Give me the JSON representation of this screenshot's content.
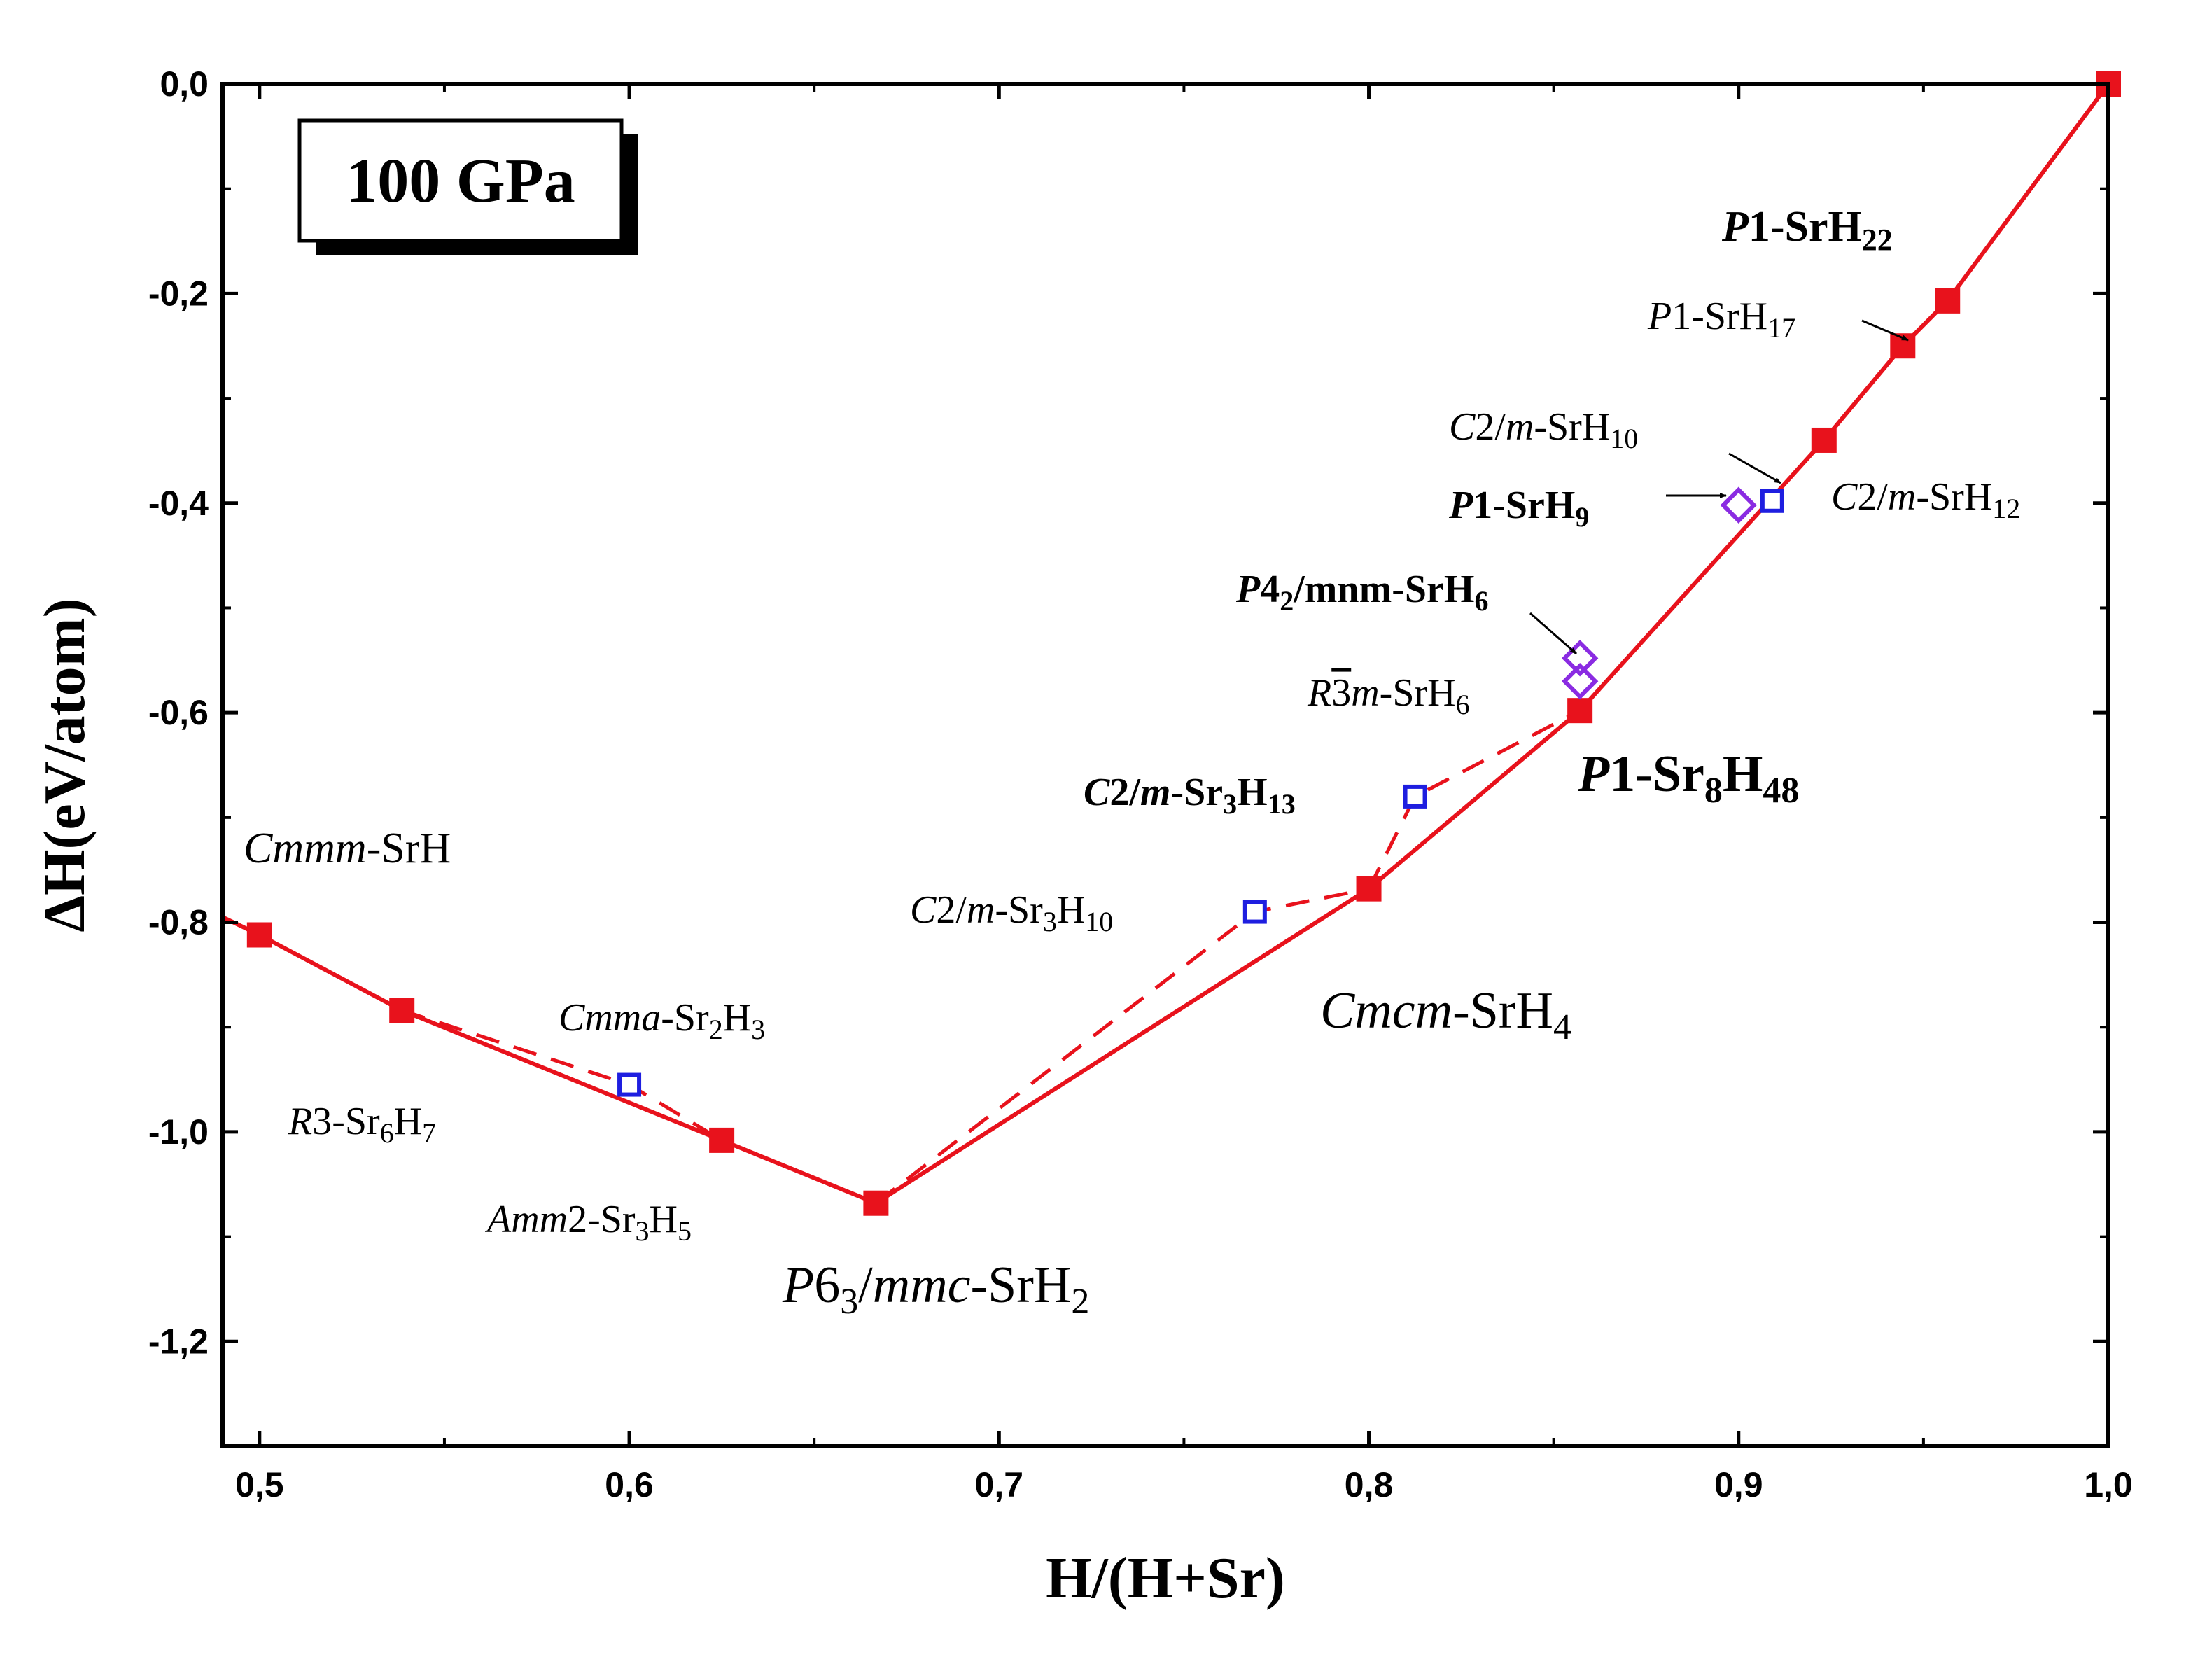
{
  "chart_data": {
    "type": "scatter",
    "title": "",
    "xlabel": "H/(H+Sr)",
    "ylabel": "ΔH(eV/atom)",
    "xlim": [
      0.49,
      1.0
    ],
    "ylim": [
      -1.3,
      0.0
    ],
    "x_ticks": [
      "0,5",
      "0,6",
      "0,7",
      "0,8",
      "0,9",
      "1,0"
    ],
    "x_tick_values": [
      0.5,
      0.6,
      0.7,
      0.8,
      0.9,
      1.0
    ],
    "y_ticks": [
      "0,0",
      "-0,2",
      "-0,4",
      "-0,6",
      "-0,8",
      "-1,0",
      "-1,2"
    ],
    "y_tick_values": [
      0.0,
      -0.2,
      -0.4,
      -0.6,
      -0.8,
      -1.0,
      -1.2
    ],
    "pressure_label": "100 GPa",
    "colors": {
      "hull": "#e8121c",
      "metastable": "#1e1ee0",
      "diamond": "#8a2be2"
    },
    "series": [
      {
        "style": "solid-line-filled-squares",
        "points": [
          {
            "x": 0.49,
            "y": -0.795,
            "marker": false
          },
          {
            "x": 0.5,
            "y": -0.812
          },
          {
            "x": 0.5385,
            "y": -0.884
          },
          {
            "x": 0.625,
            "y": -1.008
          },
          {
            "x": 0.6667,
            "y": -1.068
          },
          {
            "x": 0.8,
            "y": -0.768
          },
          {
            "x": 0.8571,
            "y": -0.598
          },
          {
            "x": 0.9231,
            "y": -0.34
          },
          {
            "x": 0.9444,
            "y": -0.25
          },
          {
            "x": 0.9565,
            "y": -0.207
          },
          {
            "x": 1.0,
            "y": 0.0
          }
        ]
      },
      {
        "style": "metastable-open-squares",
        "points": [
          {
            "x": 0.6,
            "y": -0.955
          },
          {
            "x": 0.7692,
            "y": -0.79
          },
          {
            "x": 0.8125,
            "y": -0.68
          },
          {
            "x": 0.9091,
            "y": -0.398
          }
        ]
      },
      {
        "style": "open-diamonds",
        "points": [
          {
            "x": 0.8571,
            "y": -0.548
          },
          {
            "x": 0.8571,
            "y": -0.57
          },
          {
            "x": 0.9,
            "y": -0.402
          }
        ]
      }
    ],
    "dashed_segments": [
      [
        {
          "x": 0.5385,
          "y": -0.884
        },
        {
          "x": 0.6,
          "y": -0.955
        },
        {
          "x": 0.625,
          "y": -1.008
        }
      ],
      [
        {
          "x": 0.6667,
          "y": -1.068
        },
        {
          "x": 0.7692,
          "y": -0.79
        },
        {
          "x": 0.8,
          "y": -0.768
        }
      ],
      [
        {
          "x": 0.8,
          "y": -0.768
        },
        {
          "x": 0.8125,
          "y": -0.68
        },
        {
          "x": 0.8571,
          "y": -0.598
        }
      ]
    ],
    "annotations": [
      {
        "parts": [
          [
            "Cmmm",
            "i"
          ],
          [
            "-SrH",
            ""
          ]
        ],
        "style": "med"
      },
      {
        "parts": [
          [
            "R",
            "i"
          ],
          [
            "3-Sr",
            ""
          ],
          [
            "6",
            "sub"
          ],
          [
            "H",
            ""
          ],
          [
            "7",
            "sub"
          ]
        ],
        "style": "small"
      },
      {
        "parts": [
          [
            "Cmma",
            "i"
          ],
          [
            "-Sr",
            ""
          ],
          [
            "2",
            "sub"
          ],
          [
            "H",
            ""
          ],
          [
            "3",
            "sub"
          ]
        ],
        "style": "small"
      },
      {
        "parts": [
          [
            "Amm",
            "i"
          ],
          [
            "2-Sr",
            ""
          ],
          [
            "3",
            "sub"
          ],
          [
            "H",
            ""
          ],
          [
            "5",
            "sub"
          ]
        ],
        "style": "small"
      },
      {
        "parts": [
          [
            "P",
            "i"
          ],
          [
            "6",
            ""
          ],
          [
            "3",
            "sub"
          ],
          [
            "/",
            ""
          ],
          [
            "mmc",
            "i"
          ],
          [
            "-SrH",
            ""
          ],
          [
            "2",
            "sub"
          ]
        ],
        "style": "large"
      },
      {
        "parts": [
          [
            "C",
            "i"
          ],
          [
            "2/",
            ""
          ],
          [
            "m",
            "i"
          ],
          [
            "-Sr",
            ""
          ],
          [
            "3",
            "sub"
          ],
          [
            "H",
            ""
          ],
          [
            "10",
            "sub"
          ]
        ],
        "style": "small"
      },
      {
        "parts": [
          [
            "Cmcm",
            "i"
          ],
          [
            "-SrH",
            ""
          ],
          [
            "4",
            "sub"
          ]
        ],
        "style": "large"
      },
      {
        "parts": [
          [
            "C",
            "bi"
          ],
          [
            "2/",
            ""
          ],
          [
            "m",
            "bi"
          ],
          [
            "-Sr",
            ""
          ],
          [
            "3",
            "sub"
          ],
          [
            "H",
            ""
          ],
          [
            "13",
            "sub"
          ]
        ],
        "style": "small-bold"
      },
      {
        "parts": [
          [
            "R",
            "i"
          ],
          [
            "3",
            "bar"
          ],
          [
            "m",
            "i"
          ],
          [
            "-SrH",
            ""
          ],
          [
            "6",
            "sub"
          ]
        ],
        "style": "small"
      },
      {
        "parts": [
          [
            "P",
            "bi"
          ],
          [
            "4",
            ""
          ],
          [
            "2",
            "sub"
          ],
          [
            "/mnm-SrH",
            ""
          ],
          [
            "6",
            "sub"
          ]
        ],
        "style": "small-bold"
      },
      {
        "parts": [
          [
            "P",
            "bi"
          ],
          [
            "1-Sr",
            ""
          ],
          [
            "8",
            "sub"
          ],
          [
            "H",
            ""
          ],
          [
            "48",
            "sub"
          ]
        ],
        "style": "large-bold"
      },
      {
        "parts": [
          [
            "P",
            "bi"
          ],
          [
            "1-SrH",
            ""
          ],
          [
            "9",
            "sub"
          ]
        ],
        "style": "small-bold"
      },
      {
        "parts": [
          [
            "C",
            "i"
          ],
          [
            "2/",
            ""
          ],
          [
            "m",
            "i"
          ],
          [
            "-SrH",
            ""
          ],
          [
            "10",
            "sub"
          ]
        ],
        "style": "small"
      },
      {
        "parts": [
          [
            "C",
            "i"
          ],
          [
            "2/",
            ""
          ],
          [
            "m",
            "i"
          ],
          [
            "-SrH",
            ""
          ],
          [
            "12",
            "sub"
          ]
        ],
        "style": "small"
      },
      {
        "parts": [
          [
            "P",
            "i"
          ],
          [
            "1-SrH",
            ""
          ],
          [
            "17",
            "sub"
          ]
        ],
        "style": "small"
      },
      {
        "parts": [
          [
            "P",
            "bi"
          ],
          [
            "1-SrH",
            ""
          ],
          [
            "22",
            "sub"
          ]
        ],
        "style": "med-bold"
      }
    ]
  }
}
